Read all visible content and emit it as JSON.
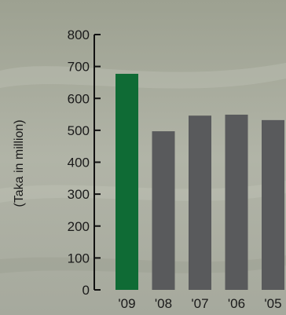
{
  "chart_data": {
    "type": "bar",
    "title": "",
    "xlabel": "",
    "ylabel": "(Taka in million)",
    "categories": [
      "'09",
      "'08",
      "'07",
      "'06",
      "'05"
    ],
    "values": [
      677,
      497,
      546,
      549,
      532
    ],
    "ylim": [
      0,
      800
    ],
    "yticks": [
      0,
      100,
      200,
      300,
      400,
      500,
      600,
      700,
      800
    ],
    "bar_colors": [
      "#0f6b35",
      "#595a5c",
      "#595a5c",
      "#595a5c",
      "#595a5c"
    ],
    "axis_color": "#111111",
    "grid": false
  }
}
